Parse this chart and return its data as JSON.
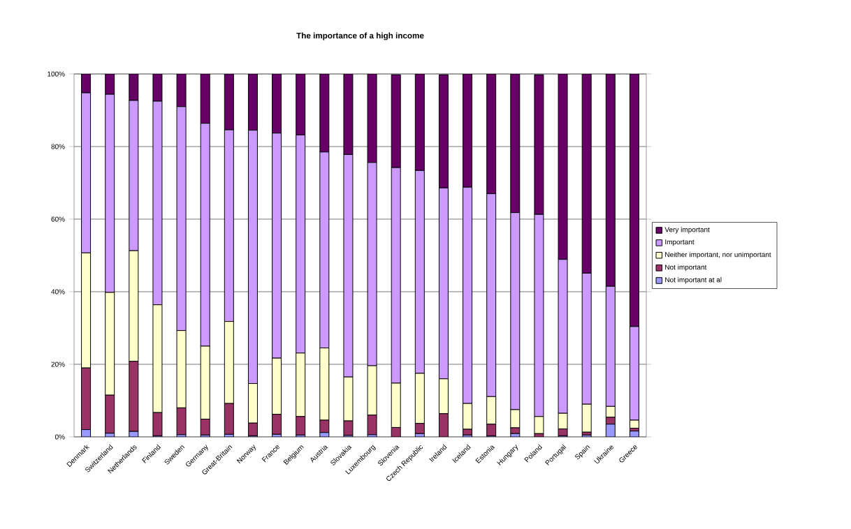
{
  "chart_data": {
    "type": "bar",
    "title": "The importance of a high income",
    "stacked": true,
    "categories": [
      "Denmark",
      "Switzerland",
      "Netherlands",
      "Finland",
      "Sweden",
      "Germany",
      "Great-Britain",
      "Norway",
      "France",
      "Belgium",
      "Austria",
      "Slovakia",
      "Luxembourg",
      "Slovenia",
      "Czech Republic",
      "Ireland",
      "Iceland",
      "Estonia",
      "Hungary",
      "Poland",
      "Portugal",
      "Spain",
      "Ukraine",
      "Greece"
    ],
    "series": [
      {
        "name": "Not important at al",
        "color": "#9999ff",
        "values": [
          2.0,
          1.0,
          1.5,
          0.3,
          0.6,
          0.5,
          0.7,
          0.3,
          0.7,
          0.5,
          1.2,
          0.4,
          0.6,
          null,
          0.9,
          null,
          0.5,
          0.3,
          0.9,
          null,
          0.3,
          0.5,
          3.5,
          1.6
        ]
      },
      {
        "name": "Not important",
        "color": "#993366",
        "values": [
          17.0,
          10.5,
          19.3,
          6.4,
          7.4,
          4.4,
          8.5,
          3.5,
          5.5,
          5.1,
          3.4,
          4.0,
          5.4,
          2.6,
          2.8,
          6.4,
          1.6,
          3.2,
          1.6,
          0.9,
          1.9,
          0.8,
          1.9,
          0.8
        ]
      },
      {
        "name": "Neither important, nor unimportant",
        "color": "#ffffcc",
        "values": [
          31.7,
          28.3,
          30.5,
          29.7,
          21.3,
          20.1,
          22.6,
          10.9,
          15.5,
          17.5,
          19.9,
          12.1,
          13.6,
          12.2,
          13.8,
          9.6,
          7.1,
          7.6,
          5.0,
          4.7,
          4.3,
          7.7,
          3.0,
          2.2
        ]
      },
      {
        "name": "Important",
        "color": "#cc99ff",
        "values": [
          44.1,
          54.6,
          41.4,
          56.1,
          61.7,
          61.4,
          52.8,
          69.8,
          62.0,
          60.1,
          54.0,
          61.3,
          56.0,
          59.4,
          55.9,
          52.6,
          59.6,
          55.9,
          54.3,
          55.7,
          42.4,
          36.1,
          33.1,
          25.8
        ]
      },
      {
        "name": "Very important",
        "color": "#660066",
        "values": [
          5.2,
          5.6,
          7.3,
          7.5,
          9.0,
          13.6,
          15.4,
          15.5,
          16.3,
          16.8,
          21.5,
          22.2,
          24.4,
          25.6,
          26.6,
          31.2,
          31.2,
          33.0,
          38.2,
          38.5,
          51.1,
          54.9,
          58.5,
          69.6
        ]
      }
    ],
    "ylim": [
      0,
      100
    ],
    "yticks": [
      {
        "value": 0,
        "label": "0%"
      },
      {
        "value": 20,
        "label": "20%"
      },
      {
        "value": 40,
        "label": "40%"
      },
      {
        "value": 60,
        "label": "60%"
      },
      {
        "value": 80,
        "label": "80%"
      },
      {
        "value": 100,
        "label": "100%"
      }
    ],
    "grid": "y",
    "legend": "right"
  }
}
